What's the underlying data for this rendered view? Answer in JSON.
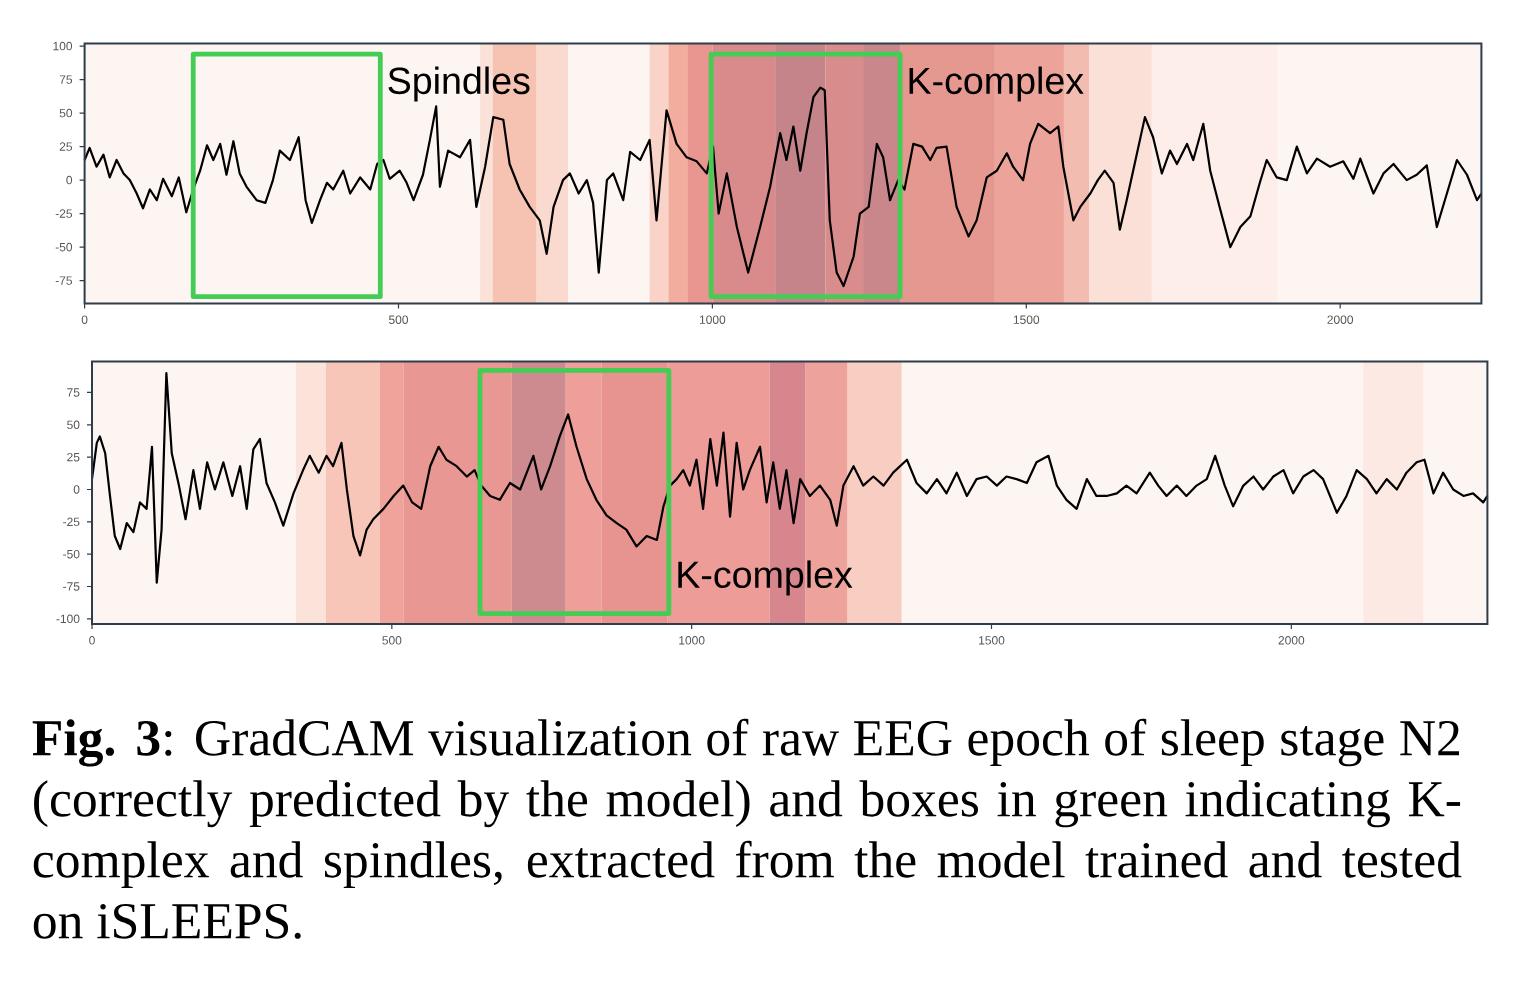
{
  "chart_data": [
    {
      "type": "line",
      "series": [
        {
          "color": "#000000",
          "x": [
            0,
            8,
            19,
            30,
            40,
            51,
            62,
            72,
            83,
            93,
            104,
            115,
            125,
            139,
            150,
            162,
            173,
            184,
            195,
            205,
            216,
            226,
            237,
            247,
            258,
            274,
            288,
            300,
            311,
            327,
            341,
            352,
            362,
            375,
            386,
            396,
            412,
            423,
            439,
            455,
            466,
            476,
            486,
            502,
            513,
            524,
            539,
            550,
            560,
            566,
            579,
            598,
            614,
            624,
            638,
            651,
            667,
            677,
            693,
            709,
            725,
            736,
            747,
            762,
            773,
            787,
            800,
            810,
            819,
            832,
            842,
            858,
            869,
            885,
            900,
            911,
            927,
            943,
            959,
            975,
            991,
            1001,
            1010,
            1023,
            1039,
            1057,
            1076,
            1092,
            1108,
            1118,
            1129,
            1140,
            1150,
            1161,
            1172,
            1179,
            1187,
            1198,
            1209,
            1225,
            1235,
            1249,
            1262,
            1272,
            1283,
            1296,
            1306,
            1320,
            1334,
            1347,
            1357,
            1373,
            1389,
            1408,
            1421,
            1437,
            1453,
            1469,
            1479,
            1495,
            1506,
            1519,
            1538,
            1551,
            1559,
            1575,
            1586,
            1602,
            1614,
            1625,
            1639,
            1649,
            1660,
            1674,
            1689,
            1702,
            1716,
            1729,
            1740,
            1756,
            1766,
            1782,
            1793,
            1809,
            1825,
            1841,
            1857,
            1872,
            1883,
            1899,
            1915,
            1931,
            1947,
            1963,
            1984,
            2005,
            2021,
            2032,
            2053,
            2069,
            2085,
            2106,
            2122,
            2138,
            2154,
            2170,
            2186,
            2202,
            2218,
            2225
          ],
          "values": [
            15,
            24,
            10,
            19,
            2,
            15,
            5,
            0,
            -10,
            -21,
            -7,
            -15,
            1,
            -12,
            2,
            -24,
            -7,
            7,
            26,
            15,
            27,
            4,
            29,
            5,
            -5,
            -15,
            -17,
            0,
            22,
            15,
            32,
            -15,
            -32,
            -15,
            -2,
            -7,
            7,
            -10,
            2,
            -7,
            12,
            15,
            1,
            7,
            -2,
            -15,
            4,
            30,
            55,
            -5,
            22,
            17,
            30,
            -20,
            10,
            47,
            45,
            12,
            -7,
            -20,
            -30,
            -55,
            -20,
            0,
            5,
            -10,
            0,
            -17,
            -69,
            0,
            5,
            -15,
            21,
            15,
            30,
            -30,
            52,
            27,
            17,
            14,
            5,
            25,
            -25,
            5,
            -35,
            -69,
            -35,
            -5,
            35,
            15,
            40,
            7,
            35,
            62,
            69,
            67,
            -30,
            -69,
            -79,
            -57,
            -25,
            -20,
            27,
            17,
            -15,
            0,
            -7,
            27,
            25,
            15,
            24,
            25,
            -20,
            -42,
            -30,
            2,
            7,
            20,
            10,
            0,
            27,
            42,
            35,
            40,
            10,
            -30,
            -20,
            -10,
            0,
            7,
            -2,
            -37,
            -15,
            15,
            47,
            32,
            5,
            22,
            12,
            27,
            15,
            42,
            7,
            -22,
            -50,
            -35,
            -27,
            -2,
            15,
            2,
            0,
            25,
            5,
            16,
            10,
            14,
            1,
            16,
            -10,
            5,
            12,
            0,
            4,
            11,
            -35,
            -10,
            15,
            4,
            -15,
            -10
          ]
        },
        {
          "name": "Spindles",
          "color": "#44cc55",
          "x": [
            173,
            471,
            471,
            173,
            173,
            471
          ],
          "values": [
            94,
            94,
            -87,
            -87,
            94,
            94
          ]
        },
        {
          "name": "K-complex",
          "color": "#44cc55",
          "x": [
            998,
            1299,
            1299,
            998,
            998,
            1299
          ],
          "values": [
            94,
            94,
            -87,
            -87,
            94,
            94
          ]
        }
      ],
      "xlim": [
        0,
        2225
      ],
      "ylim": [
        -92,
        102
      ],
      "xticks": [
        0,
        500,
        1000,
        1500,
        2000
      ],
      "yticks": [
        -75,
        -50,
        -25,
        0,
        25,
        50,
        75,
        100
      ],
      "bands": [
        {
          "axis": "x",
          "from": 0,
          "to": 2225,
          "color": "#fdf5f2"
        },
        {
          "axis": "x",
          "from": 630,
          "to": 650,
          "color": "#fbe2d9"
        },
        {
          "axis": "x",
          "from": 650,
          "to": 720,
          "color": "#f6c2b2"
        },
        {
          "axis": "x",
          "from": 720,
          "to": 770,
          "color": "#fadace"
        },
        {
          "axis": "x",
          "from": 900,
          "to": 930,
          "color": "#f9d3c7"
        },
        {
          "axis": "x",
          "from": 930,
          "to": 960,
          "color": "#f2ad9f"
        },
        {
          "axis": "x",
          "from": 960,
          "to": 1000,
          "color": "#e99690"
        },
        {
          "axis": "x",
          "from": 1000,
          "to": 1100,
          "color": "#d98b8b"
        },
        {
          "axis": "x",
          "from": 1100,
          "to": 1180,
          "color": "#c5848a"
        },
        {
          "axis": "x",
          "from": 1180,
          "to": 1240,
          "color": "#d88c8c"
        },
        {
          "axis": "x",
          "from": 1240,
          "to": 1300,
          "color": "#c9868b"
        },
        {
          "axis": "x",
          "from": 1300,
          "to": 1450,
          "color": "#e5988f"
        },
        {
          "axis": "x",
          "from": 1450,
          "to": 1560,
          "color": "#eba39a"
        },
        {
          "axis": "x",
          "from": 1560,
          "to": 1600,
          "color": "#f3bcb1"
        },
        {
          "axis": "x",
          "from": 1600,
          "to": 1700,
          "color": "#fbe0d7"
        },
        {
          "axis": "x",
          "from": 1700,
          "to": 1900,
          "color": "#fdeee9"
        }
      ]
    },
    {
      "type": "line",
      "series": [
        {
          "color": "#000000",
          "x": [
            0,
            8,
            13,
            22,
            30,
            38,
            47,
            58,
            69,
            80,
            91,
            100,
            108,
            116,
            124,
            133,
            145,
            156,
            169,
            180,
            192,
            205,
            219,
            234,
            247,
            258,
            269,
            280,
            291,
            305,
            319,
            336,
            352,
            363,
            378,
            391,
            402,
            416,
            425,
            436,
            447,
            458,
            469,
            486,
            503,
            519,
            534,
            549,
            564,
            578,
            591,
            608,
            625,
            638,
            649,
            664,
            680,
            697,
            714,
            725,
            736,
            749,
            764,
            780,
            794,
            808,
            825,
            841,
            858,
            875,
            891,
            908,
            925,
            942,
            953,
            964,
            975,
            986,
            997,
            1008,
            1019,
            1031,
            1042,
            1053,
            1064,
            1075,
            1086,
            1097,
            1114,
            1125,
            1136,
            1147,
            1158,
            1170,
            1181,
            1197,
            1214,
            1231,
            1242,
            1253,
            1270,
            1286,
            1303,
            1320,
            1336,
            1359,
            1375,
            1392,
            1409,
            1425,
            1442,
            1459,
            1475,
            1492,
            1509,
            1525,
            1542,
            1559,
            1575,
            1595,
            1609,
            1625,
            1642,
            1659,
            1675,
            1692,
            1709,
            1725,
            1742,
            1764,
            1778,
            1792,
            1809,
            1825,
            1842,
            1859,
            1873,
            1889,
            1903,
            1920,
            1937,
            1953,
            1970,
            1987,
            2003,
            2020,
            2037,
            2053,
            2076,
            2092,
            2109,
            2126,
            2142,
            2159,
            2176,
            2192,
            2209,
            2222,
            2237,
            2253,
            2270,
            2287,
            2303,
            2320,
            2327
          ],
          "values": [
            8,
            36,
            41,
            28,
            -5,
            -36,
            -46,
            -26,
            -33,
            -10,
            -15,
            33,
            -72,
            -31,
            90,
            28,
            3,
            -23,
            15,
            -15,
            21,
            0,
            21,
            -5,
            18,
            -15,
            31,
            39,
            5,
            -10,
            -28,
            -3,
            15,
            26,
            13,
            26,
            18,
            36,
            0,
            -36,
            -51,
            -31,
            -23,
            -15,
            -5,
            3,
            -10,
            -15,
            18,
            33,
            23,
            18,
            10,
            15,
            3,
            -5,
            -8,
            5,
            0,
            13,
            26,
            0,
            18,
            41,
            58,
            33,
            8,
            -8,
            -20,
            -26,
            -31,
            -44,
            -36,
            -39,
            -13,
            3,
            8,
            15,
            3,
            23,
            -15,
            39,
            3,
            44,
            -21,
            36,
            0,
            15,
            33,
            -10,
            21,
            -15,
            15,
            -26,
            8,
            -5,
            3,
            -8,
            -28,
            3,
            18,
            3,
            10,
            3,
            13,
            23,
            5,
            -3,
            8,
            -3,
            13,
            -5,
            8,
            10,
            3,
            10,
            8,
            5,
            21,
            26,
            3,
            -8,
            -15,
            8,
            -5,
            -5,
            -3,
            3,
            -3,
            13,
            3,
            -5,
            3,
            -5,
            3,
            8,
            26,
            3,
            -13,
            3,
            10,
            0,
            10,
            15,
            -3,
            10,
            15,
            8,
            -18,
            -5,
            15,
            8,
            -3,
            8,
            0,
            13,
            21,
            23,
            -3,
            13,
            0,
            -5,
            -3,
            -10,
            -5
          ]
        },
        {
          "name": "K-complex",
          "color": "#44cc55",
          "x": [
            647,
            962,
            962,
            647,
            647,
            962
          ],
          "values": [
            92,
            92,
            -96,
            -96,
            92,
            92
          ]
        }
      ],
      "xlim": [
        0,
        2327
      ],
      "ylim": [
        -104,
        99
      ],
      "xticks": [
        0,
        500,
        1000,
        1500,
        2000
      ],
      "yticks": [
        -100,
        -75,
        -50,
        -25,
        0,
        25,
        50,
        75
      ],
      "bands": [
        {
          "axis": "x",
          "from": 0,
          "to": 2327,
          "color": "#fdf5f2"
        },
        {
          "axis": "x",
          "from": 340,
          "to": 390,
          "color": "#fce3da"
        },
        {
          "axis": "x",
          "from": 390,
          "to": 480,
          "color": "#f7c6b9"
        },
        {
          "axis": "x",
          "from": 480,
          "to": 520,
          "color": "#f0a39a"
        },
        {
          "axis": "x",
          "from": 520,
          "to": 700,
          "color": "#e99792"
        },
        {
          "axis": "x",
          "from": 700,
          "to": 790,
          "color": "#cd8a8f"
        },
        {
          "axis": "x",
          "from": 790,
          "to": 850,
          "color": "#ef9f99"
        },
        {
          "axis": "x",
          "from": 850,
          "to": 960,
          "color": "#e79490"
        },
        {
          "axis": "x",
          "from": 960,
          "to": 1130,
          "color": "#ed9c98"
        },
        {
          "axis": "x",
          "from": 1130,
          "to": 1190,
          "color": "#d6868c"
        },
        {
          "axis": "x",
          "from": 1190,
          "to": 1260,
          "color": "#eda29c"
        },
        {
          "axis": "x",
          "from": 1260,
          "to": 1350,
          "color": "#f8cdc2"
        },
        {
          "axis": "x",
          "from": 2120,
          "to": 2220,
          "color": "#fce9e3"
        }
      ],
      "annotations": [
        "**Fig. 3**: GradCAM visualization of raw EEG epoch of sleep stage N2 (correctly predicted by the model) and boxes in green indicating K-complex and spindles, extracted from the model trained and tested on iSLEEPS."
      ]
    }
  ]
}
